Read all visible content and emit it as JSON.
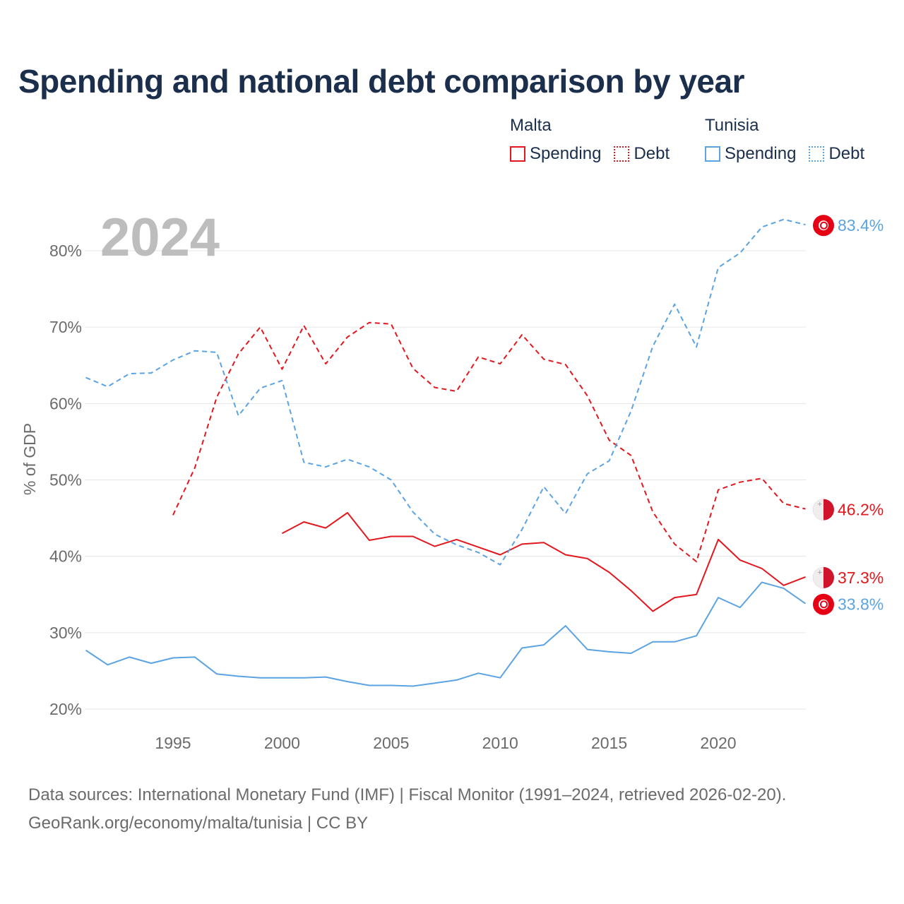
{
  "title": "Spending and national debt comparison by year",
  "legend": {
    "groups": [
      {
        "name": "Malta",
        "color": "#e3181e",
        "items": [
          {
            "label": "Spending",
            "style": "solid"
          },
          {
            "label": "Debt",
            "style": "dotted"
          }
        ]
      },
      {
        "name": "Tunisia",
        "color": "#5ba3e2",
        "items": [
          {
            "label": "Spending",
            "style": "solid"
          },
          {
            "label": "Debt",
            "style": "dotted"
          }
        ]
      }
    ]
  },
  "year_label": "2024",
  "footer": {
    "line1": "Data sources: International Monetary Fund (IMF) | Fiscal Monitor (1991–2024, retrieved 2026-02-20).",
    "line2": "GeoRank.org/economy/malta/tunisia | CC BY"
  },
  "chart_data": {
    "type": "line",
    "title": "Spending and national debt comparison by year",
    "xlabel": "",
    "ylabel": "% of GDP",
    "xlim": [
      1991,
      2024
    ],
    "ylim": [
      20,
      85
    ],
    "grid": true,
    "x_ticks": [
      1995,
      2000,
      2005,
      2010,
      2015,
      2020
    ],
    "y_ticks": [
      20,
      30,
      40,
      50,
      60,
      70,
      80
    ],
    "y_tick_labels": [
      "20%",
      "30%",
      "40%",
      "50%",
      "60%",
      "70%",
      "80%"
    ],
    "series": [
      {
        "name": "Malta Spending",
        "country": "Malta",
        "color": "#e3181e",
        "dash": "solid",
        "end_label": "37.3%",
        "flag": "malta",
        "x": [
          2000,
          2001,
          2002,
          2003,
          2004,
          2005,
          2006,
          2007,
          2008,
          2009,
          2010,
          2011,
          2012,
          2013,
          2014,
          2015,
          2016,
          2017,
          2018,
          2019,
          2020,
          2021,
          2022,
          2023,
          2024
        ],
        "values": [
          43.0,
          44.5,
          43.7,
          45.7,
          42.1,
          42.6,
          42.6,
          41.3,
          42.2,
          41.2,
          40.2,
          41.6,
          41.8,
          40.2,
          39.7,
          37.9,
          35.5,
          32.8,
          34.6,
          35.0,
          42.2,
          39.5,
          38.4,
          36.2,
          37.3
        ]
      },
      {
        "name": "Malta Debt",
        "country": "Malta",
        "color": "#e3181e",
        "dash": "dashed",
        "end_label": "46.2%",
        "flag": "malta",
        "x": [
          1995,
          1996,
          1997,
          1998,
          1999,
          2000,
          2001,
          2002,
          2003,
          2004,
          2005,
          2006,
          2007,
          2008,
          2009,
          2010,
          2011,
          2012,
          2013,
          2014,
          2015,
          2016,
          2017,
          2018,
          2019,
          2020,
          2021,
          2022,
          2023,
          2024
        ],
        "values": [
          45.4,
          51.6,
          60.8,
          66.5,
          70.0,
          64.5,
          70.2,
          65.2,
          68.7,
          70.6,
          70.4,
          64.6,
          62.1,
          61.6,
          66.1,
          65.2,
          69.0,
          65.8,
          65.1,
          61.0,
          55.2,
          53.2,
          45.8,
          41.6,
          39.3,
          48.7,
          49.7,
          50.2,
          46.9,
          46.2
        ]
      },
      {
        "name": "Tunisia Spending",
        "country": "Tunisia",
        "color": "#5ba3e2",
        "dash": "solid",
        "end_label": "33.8%",
        "flag": "tunisia",
        "x": [
          1991,
          1992,
          1993,
          1994,
          1995,
          1996,
          1997,
          1998,
          1999,
          2000,
          2001,
          2002,
          2003,
          2004,
          2005,
          2006,
          2007,
          2008,
          2009,
          2010,
          2011,
          2012,
          2013,
          2014,
          2015,
          2016,
          2017,
          2018,
          2019,
          2020,
          2021,
          2022,
          2023,
          2024
        ],
        "values": [
          27.7,
          25.8,
          26.8,
          26.0,
          26.7,
          26.8,
          24.6,
          24.3,
          24.1,
          24.1,
          24.1,
          24.2,
          23.6,
          23.1,
          23.1,
          23.0,
          23.4,
          23.8,
          24.7,
          24.1,
          28.0,
          28.4,
          30.9,
          27.8,
          27.5,
          27.3,
          28.8,
          28.8,
          29.6,
          34.6,
          33.3,
          36.6,
          35.8,
          33.8
        ]
      },
      {
        "name": "Tunisia Debt",
        "country": "Tunisia",
        "color": "#5ba3e2",
        "dash": "dashed",
        "end_label": "83.4%",
        "flag": "tunisia",
        "x": [
          1991,
          1992,
          1993,
          1994,
          1995,
          1996,
          1997,
          1998,
          1999,
          2000,
          2001,
          2002,
          2003,
          2004,
          2005,
          2006,
          2007,
          2008,
          2009,
          2010,
          2011,
          2012,
          2013,
          2014,
          2015,
          2016,
          2017,
          2018,
          2019,
          2020,
          2021,
          2022,
          2023,
          2024
        ],
        "values": [
          63.4,
          62.2,
          63.9,
          64.0,
          65.7,
          66.9,
          66.7,
          58.4,
          62.0,
          63.0,
          52.3,
          51.7,
          52.7,
          51.7,
          50.0,
          45.8,
          42.9,
          41.5,
          40.5,
          38.9,
          43.5,
          49.1,
          45.6,
          50.8,
          52.5,
          59.0,
          67.5,
          73.0,
          67.4,
          77.8,
          79.7,
          83.1,
          84.1,
          83.4
        ]
      }
    ]
  }
}
